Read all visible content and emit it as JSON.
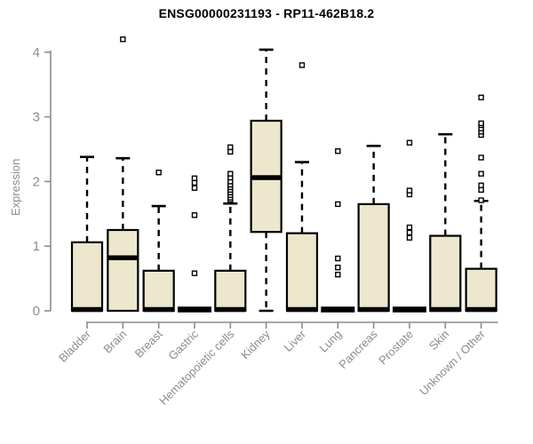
{
  "colors": {
    "box_fill": "#ece7cd",
    "box_stroke": "#000000",
    "median_color": "#000000",
    "whisker_color": "#000000",
    "outlier_fill": "#ffffff",
    "outlier_stroke": "#000000",
    "axis_color": "#8c8c8c",
    "axis_text_color": "#8c8c8c",
    "title_color": "#000000",
    "background": "#ffffff"
  },
  "chart_data": {
    "type": "boxplot",
    "title": "ENSG00000231193 - RP11-462B18.2",
    "ylabel": "Expression",
    "xlabel": "",
    "ylim": [
      0,
      4
    ],
    "yticks": [
      0,
      1,
      2,
      3,
      4
    ],
    "grid": false,
    "legend_position": "none",
    "categories": [
      "Bladder",
      "Brain",
      "Breast",
      "Gastric",
      "Hematopoietic cells",
      "Kidney",
      "Liver",
      "Lung",
      "Pancreas",
      "Prostate",
      "Skin",
      "Unknown / Other"
    ],
    "series": [
      {
        "category": "Bladder",
        "low": 0,
        "q1": 0,
        "median": 0.02,
        "q3": 1.06,
        "high": 2.38,
        "outliers": []
      },
      {
        "category": "Brain",
        "low": 0,
        "q1": 0,
        "median": 0.82,
        "q3": 1.25,
        "high": 2.36,
        "outliers": [
          4.2
        ]
      },
      {
        "category": "Breast",
        "low": 0,
        "q1": 0,
        "median": 0.02,
        "q3": 0.62,
        "high": 1.62,
        "outliers": [
          2.14
        ]
      },
      {
        "category": "Gastric",
        "low": 0,
        "q1": 0,
        "median": 0.02,
        "q3": 0.02,
        "high": 0.02,
        "outliers": [
          0.58,
          1.48,
          1.9,
          1.98,
          2.05
        ]
      },
      {
        "category": "Hematopoietic cells",
        "low": 0,
        "q1": 0,
        "median": 0.02,
        "q3": 0.62,
        "high": 1.66,
        "outliers": [
          1.72,
          1.75,
          1.79,
          1.83,
          1.87,
          1.91,
          1.95,
          2.0,
          2.06,
          2.12,
          2.46,
          2.53
        ]
      },
      {
        "category": "Kidney",
        "low": 0,
        "q1": 1.22,
        "median": 2.06,
        "q3": 2.94,
        "high": 4.04,
        "outliers": []
      },
      {
        "category": "Liver",
        "low": 0,
        "q1": 0,
        "median": 0.02,
        "q3": 1.2,
        "high": 2.3,
        "outliers": [
          3.8
        ]
      },
      {
        "category": "Lung",
        "low": 0,
        "q1": 0,
        "median": 0.02,
        "q3": 0.02,
        "high": 0.02,
        "outliers": [
          0.56,
          0.67,
          0.81,
          1.65,
          2.47
        ]
      },
      {
        "category": "Pancreas",
        "low": 0,
        "q1": 0,
        "median": 0.02,
        "q3": 1.65,
        "high": 2.55,
        "outliers": []
      },
      {
        "category": "Prostate",
        "low": 0,
        "q1": 0,
        "median": 0.02,
        "q3": 0.02,
        "high": 0.02,
        "outliers": [
          1.13,
          1.21,
          1.29,
          1.8,
          1.86,
          2.6
        ]
      },
      {
        "category": "Skin",
        "low": 0,
        "q1": 0,
        "median": 0.02,
        "q3": 1.16,
        "high": 2.73,
        "outliers": []
      },
      {
        "category": "Unknown / Other",
        "low": 0,
        "q1": 0,
        "median": 0.02,
        "q3": 0.65,
        "high": 1.7,
        "outliers": [
          1.71,
          1.87,
          1.94,
          2.12,
          2.37,
          2.72,
          2.77,
          2.82,
          2.87,
          2.9,
          3.3
        ]
      }
    ]
  }
}
